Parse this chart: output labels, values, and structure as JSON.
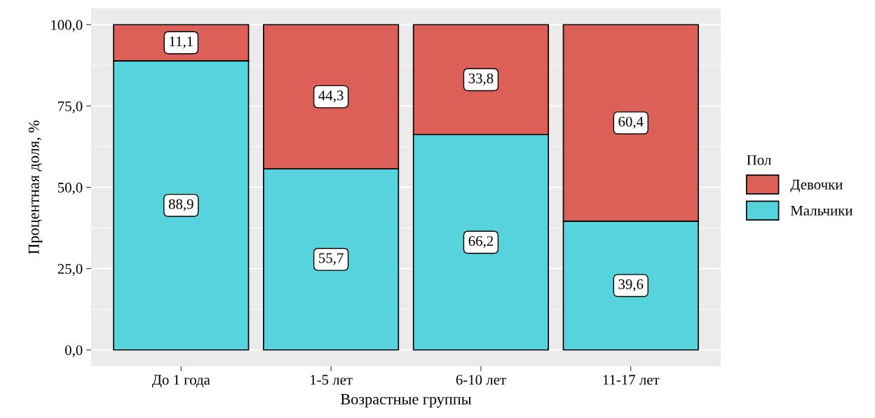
{
  "chart_data": {
    "type": "bar",
    "stacked": true,
    "xlabel": "Возрастные группы",
    "ylabel": "Процентная доля, %",
    "legend_title": "Пол",
    "categories": [
      "До 1 года",
      "1-5 лет",
      "6-10 лет",
      "11-17 лет"
    ],
    "series": [
      {
        "name": "Мальчики",
        "color": "#56d3dc",
        "values": [
          88.9,
          55.7,
          66.2,
          39.6
        ],
        "value_labels": [
          "88,9",
          "55,7",
          "66,2",
          "39,6"
        ]
      },
      {
        "name": "Девочки",
        "color": "#dc5f58",
        "values": [
          11.1,
          44.3,
          33.8,
          60.4
        ],
        "value_labels": [
          "11,1",
          "44,3",
          "33,8",
          "60,4"
        ]
      }
    ],
    "ylim": [
      -5,
      105
    ],
    "yticks": [
      {
        "value": 0,
        "label": "0,0"
      },
      {
        "value": 25,
        "label": "25,0"
      },
      {
        "value": 50,
        "label": "50,0"
      },
      {
        "value": 75,
        "label": "75,0"
      },
      {
        "value": 100,
        "label": "100,0"
      }
    ],
    "grid": "y",
    "legend": "right"
  }
}
